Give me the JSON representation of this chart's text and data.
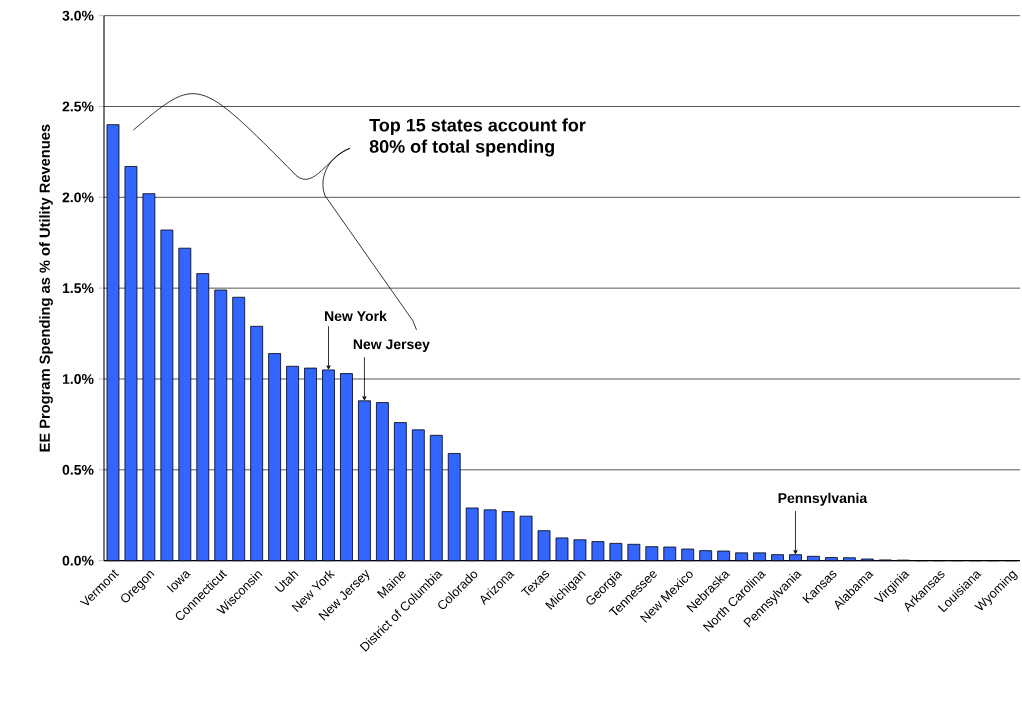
{
  "chart_data": {
    "type": "bar",
    "ylabel": "EE Program Spending as % of Utility Revenues",
    "categories": [
      "Vermont",
      null,
      "Oregon",
      null,
      "Iowa",
      null,
      "Connecticut",
      null,
      "Wisconsin",
      null,
      "Utah",
      null,
      "New York",
      null,
      "New Jersey",
      null,
      "Maine",
      null,
      "District of Columbia",
      null,
      "Colorado",
      null,
      "Arizona",
      null,
      "Texas",
      null,
      "Michigan",
      null,
      "Georgia",
      null,
      "Tennessee",
      null,
      "New Mexico",
      null,
      "Nebraska",
      null,
      "North Carolina",
      null,
      "Pennsylvania",
      null,
      "Kansas",
      null,
      "Alabama",
      null,
      "Virginia",
      null,
      "Arkansas",
      null,
      "Louisiana",
      null,
      "Wyoming"
    ],
    "values": [
      2.4,
      2.17,
      2.02,
      1.82,
      1.72,
      1.58,
      1.49,
      1.45,
      1.29,
      1.14,
      1.07,
      1.06,
      1.05,
      1.03,
      0.88,
      0.87,
      0.76,
      0.72,
      0.69,
      0.59,
      0.29,
      0.28,
      0.27,
      0.245,
      0.165,
      0.125,
      0.115,
      0.105,
      0.095,
      0.09,
      0.077,
      0.075,
      0.064,
      0.055,
      0.053,
      0.043,
      0.043,
      0.033,
      0.033,
      0.024,
      0.017,
      0.016,
      0.009,
      0.004,
      0.003,
      0,
      0,
      0,
      0,
      0,
      0
    ],
    "color": "#3366ff",
    "ylim": [
      0,
      3
    ],
    "yticks": [
      {
        "value": 0,
        "label": "0.0%"
      },
      {
        "value": 0.5,
        "label": "0.5%"
      },
      {
        "value": 1,
        "label": "1.0%"
      },
      {
        "value": 1.5,
        "label": "1.5%"
      },
      {
        "value": 2,
        "label": "2.0%"
      },
      {
        "value": 2.5,
        "label": "2.5%"
      },
      {
        "value": 3,
        "label": "3.0%"
      }
    ],
    "grid": "y",
    "annotations": [
      "Top 15 states account for\n80% of total spending",
      {
        "text": "New York",
        "x": "New York",
        "y": 1.05
      },
      {
        "text": "New Jersey",
        "x": "New Jersey",
        "y": 0.88
      },
      {
        "text": "Pennsylvania",
        "x": "Pennsylvania",
        "y": 0.033
      }
    ]
  }
}
